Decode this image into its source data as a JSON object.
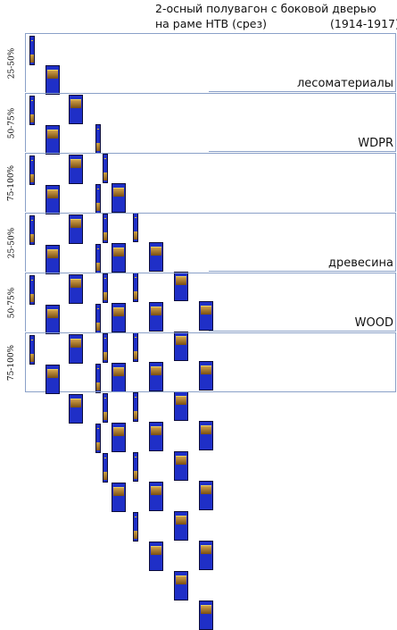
{
  "header": {
    "title_line1": "2-осный полувагон с боковой дверью",
    "title_line2": "на раме НТВ (срез)",
    "years": "(1914-1917)"
  },
  "colors": {
    "car_body": "#1f2fc7",
    "cargo": "#b8862e",
    "divider": "#8aa0c8"
  },
  "rows": [
    {
      "load": "25-50%",
      "cargo": "лесоматериалы"
    },
    {
      "load": "50-75%",
      "cargo": "WDPR"
    },
    {
      "load": "75-100%",
      "cargo": ""
    },
    {
      "load": "25-50%",
      "cargo": "древесина"
    },
    {
      "load": "50-75%",
      "cargo": "WOOD"
    },
    {
      "load": "75-100%",
      "cargo": ""
    }
  ],
  "sprite_icons": [
    "stake-car-icon",
    "stake-car-icon",
    "box-car-icon",
    "stake-car-icon",
    "box-car-icon",
    "stake-car-icon",
    "stake-car-icon",
    "box-car-icon",
    "stake-car-icon",
    "box-car-icon"
  ]
}
